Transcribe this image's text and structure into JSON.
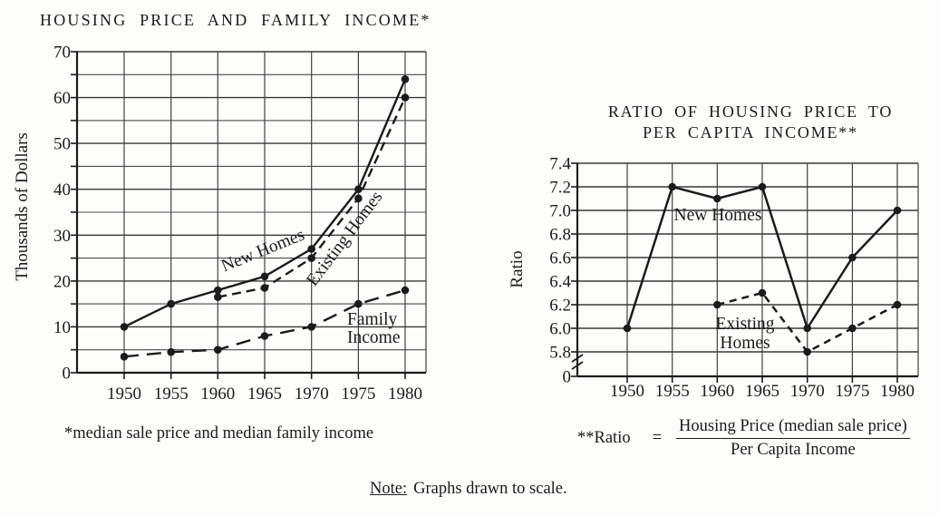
{
  "page": {
    "background": "#fdfdfb",
    "ink": "#1b1b1b"
  },
  "note": {
    "label": "Note:",
    "text": "Graphs drawn to scale."
  },
  "chart_data": [
    {
      "type": "line",
      "title": "HOUSING PRICE AND FAMILY INCOME*",
      "ylabel": "Thousands of Dollars",
      "footnote": "*median sale price and median family income",
      "x": [
        1950,
        1955,
        1960,
        1965,
        1970,
        1975,
        1980
      ],
      "x_labels": [
        "1950",
        "1955",
        "1960",
        "1965",
        "1970",
        "1975",
        "1980"
      ],
      "ylim": [
        0,
        70
      ],
      "yticks": {
        "values": [
          0,
          10,
          20,
          30,
          40,
          50,
          60,
          70
        ],
        "labels": [
          "0",
          "10",
          "20",
          "30",
          "40",
          "50",
          "60",
          "70"
        ]
      },
      "ytick_minor_step": 5,
      "grid": true,
      "marker": "filled-circle",
      "series": [
        {
          "name": "New Homes",
          "line_style": "solid",
          "values": [
            10,
            15,
            18,
            21,
            27,
            40,
            64
          ]
        },
        {
          "name": "Existing Homes",
          "line_style": "dashed",
          "values": [
            null,
            null,
            16.5,
            18.5,
            25,
            38,
            60
          ]
        },
        {
          "name": "Family Income",
          "label_lines": [
            "Family",
            "Income"
          ],
          "line_style": "long-dash",
          "values": [
            3.5,
            4.5,
            5,
            8,
            10,
            15,
            18
          ]
        }
      ]
    },
    {
      "type": "line",
      "title": "RATIO OF HOUSING PRICE TO PER CAPITA INCOME**",
      "title_lines": [
        "RATIO OF HOUSING PRICE TO",
        "PER CAPITA INCOME**"
      ],
      "ylabel": "Ratio",
      "x": [
        1950,
        1955,
        1960,
        1965,
        1970,
        1975,
        1980
      ],
      "x_labels": [
        "1950",
        "1955",
        "1960",
        "1965",
        "1970",
        "1975",
        "1980"
      ],
      "ylim": [
        5.8,
        7.4
      ],
      "axis_break": {
        "shown": true,
        "zero_label": "0"
      },
      "yticks": {
        "values": [
          5.8,
          6.0,
          6.2,
          6.4,
          6.6,
          6.8,
          7.0,
          7.2,
          7.4
        ],
        "labels": [
          "5.8",
          "6.0",
          "6.2",
          "6.4",
          "6.6",
          "6.8",
          "7.0",
          "7.2",
          "7.4"
        ]
      },
      "grid": true,
      "marker": "filled-circle",
      "series": [
        {
          "name": "New Homes",
          "line_style": "solid",
          "values": [
            6.0,
            7.2,
            7.1,
            7.2,
            6.0,
            6.6,
            7.0
          ]
        },
        {
          "name": "Existing Homes",
          "label_lines": [
            "Existing",
            "Homes"
          ],
          "line_style": "dashed",
          "values": [
            null,
            null,
            6.2,
            6.3,
            5.8,
            6.0,
            6.2
          ]
        }
      ],
      "formula": {
        "prefix": "**Ratio",
        "equals": "=",
        "numerator": "Housing Price (median sale price)",
        "denominator": "Per Capita Income"
      }
    }
  ]
}
